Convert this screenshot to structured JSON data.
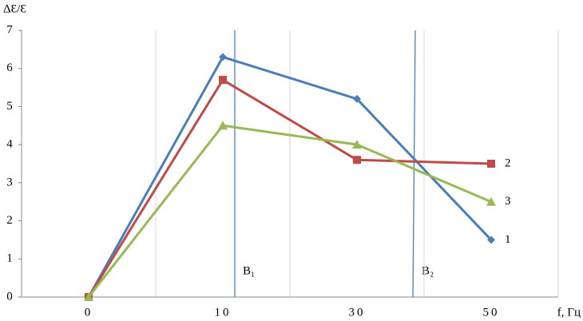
{
  "chart_data": {
    "type": "line",
    "y_label": "ΔԐ/Ԑ",
    "x_label": "f, Гц",
    "categories": [
      "0",
      "10",
      "30",
      "50"
    ],
    "series": [
      {
        "name": "1",
        "color": "#4a7ebb",
        "marker": "diamond",
        "values": [
          0,
          6.3,
          5.2,
          1.5
        ]
      },
      {
        "name": "2",
        "color": "#be4b48",
        "marker": "square",
        "values": [
          0,
          5.7,
          3.6,
          3.5
        ]
      },
      {
        "name": "3",
        "color": "#98b954",
        "marker": "triangle",
        "values": [
          0,
          4.5,
          4.0,
          2.5
        ]
      }
    ],
    "ylim": [
      0,
      7
    ],
    "yticks": [
      0,
      1,
      2,
      3,
      4,
      5,
      6,
      7
    ],
    "grid": true,
    "annotations": [
      "B₁",
      "B₂"
    ]
  }
}
